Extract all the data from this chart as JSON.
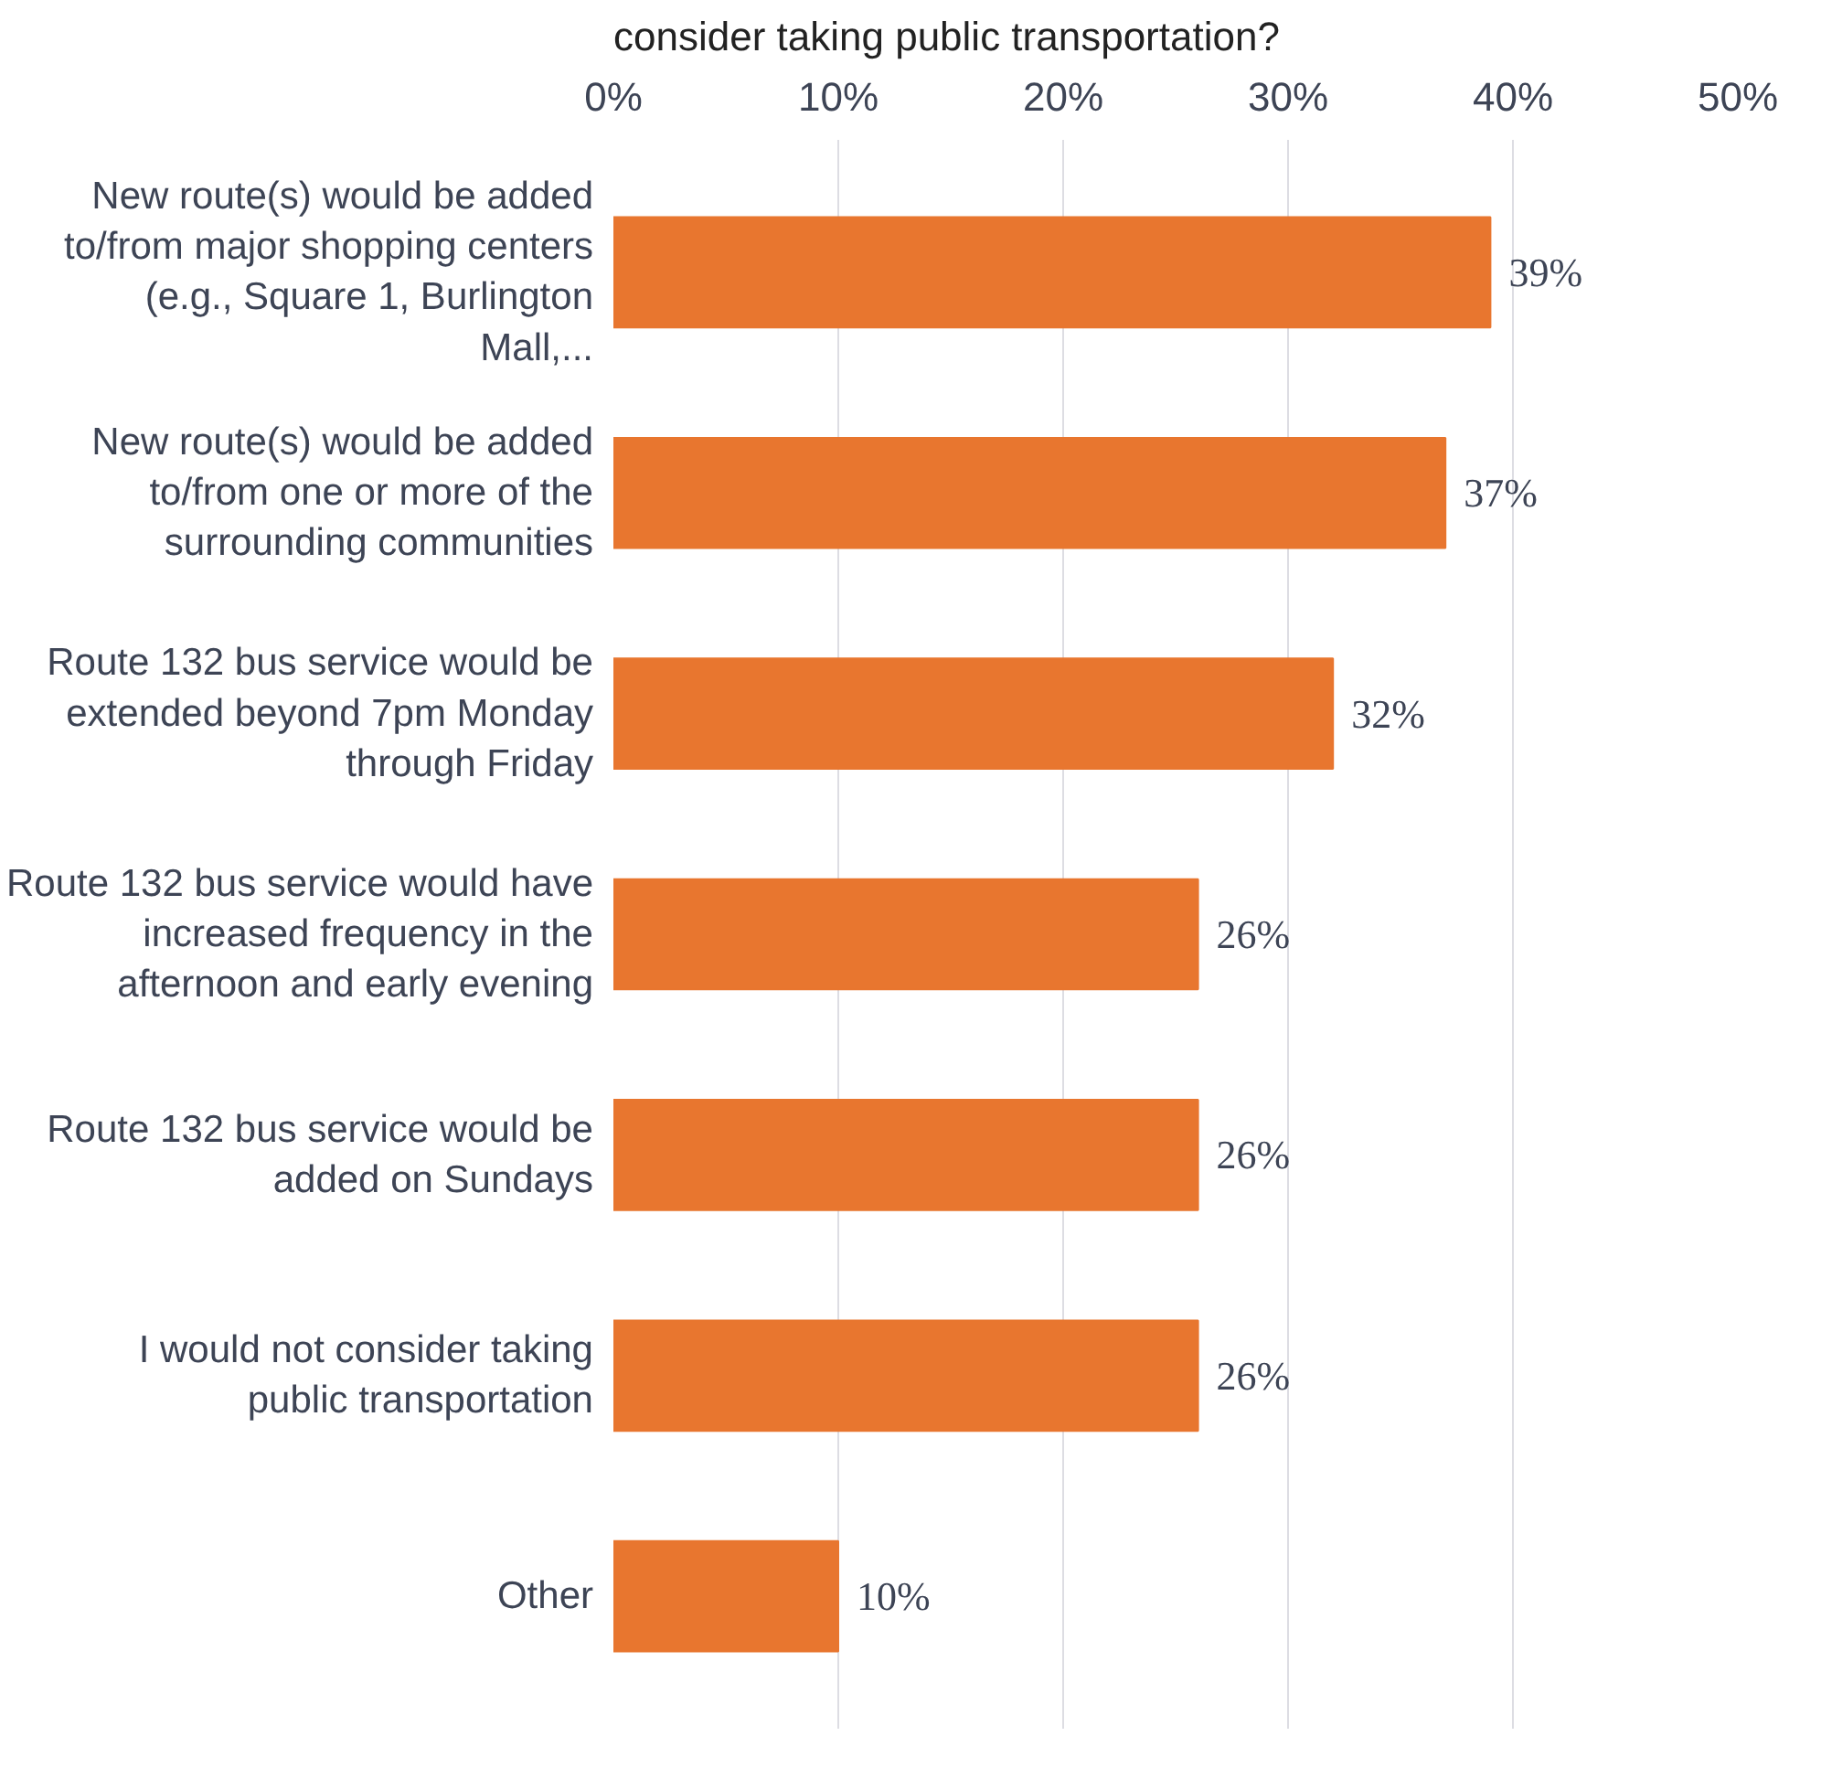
{
  "chart_data": {
    "type": "bar",
    "orientation": "horizontal",
    "title": "consider taking public transportation?",
    "categories": [
      "New route(s) would be added to/from major shopping centers (e.g., Square 1, Burlington Mall,...",
      "New route(s) would be added to/from one or more of the surrounding communities",
      "Route 132 bus service would be extended beyond 7pm Monday through Friday",
      "Route 132 bus service would have increased frequency in the afternoon and early evening",
      "Route 132 bus service would be added on Sundays",
      "I would not consider taking public transportation",
      "Other"
    ],
    "values": [
      39,
      37,
      32,
      26,
      26,
      26,
      10
    ],
    "color": "#e8762f",
    "xlim": [
      0,
      50
    ],
    "xticks": [
      {
        "value": 0,
        "label": "0%"
      },
      {
        "value": 10,
        "label": "10%"
      },
      {
        "value": 20,
        "label": "20%"
      },
      {
        "value": 30,
        "label": "30%"
      },
      {
        "value": 40,
        "label": "40%"
      },
      {
        "value": 50,
        "label": "50%"
      }
    ],
    "grid": "x",
    "data_labels": true,
    "value_labels": [
      "39%",
      "37%",
      "32%",
      "26%",
      "26%",
      "26%",
      "10%"
    ]
  }
}
